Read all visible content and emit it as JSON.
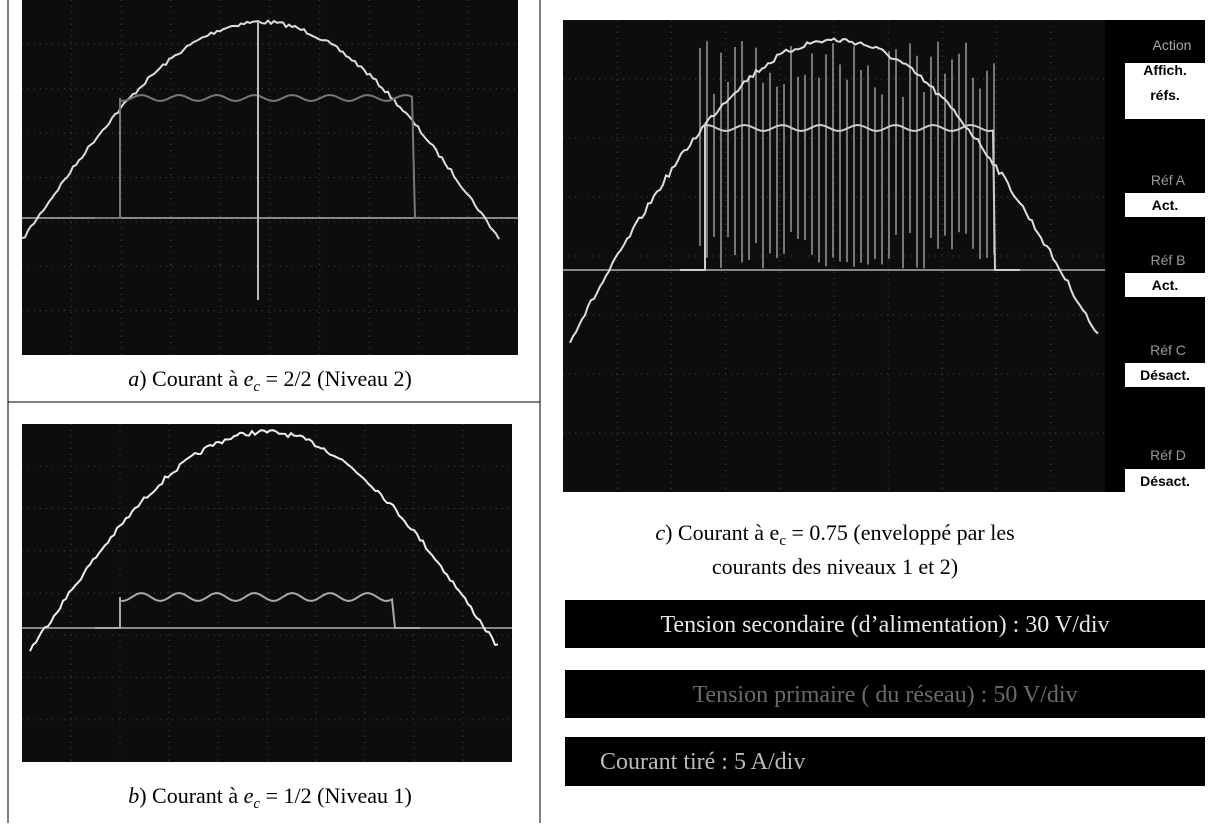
{
  "figure_a": {
    "caption": {
      "label": "a",
      "text1": ") Courant à ",
      "var": "e",
      "sub": "c",
      "text2": " = 2/2 (Niveau 2)"
    }
  },
  "figure_b": {
    "caption": {
      "label": "b",
      "text1": ") Courant à ",
      "var": "e",
      "sub": "c",
      "text2": " = 1/2 (Niveau 1)"
    }
  },
  "figure_c": {
    "caption": {
      "label": "c",
      "line1": ") Courant à e",
      "sub": "c",
      "line1b": " = 0.75 (enveloppé par les",
      "line2": "courants des niveaux 1 et 2)"
    },
    "menu": {
      "title": "Action",
      "items": [
        {
          "ref": "Affich.",
          "state": "réfs."
        },
        {
          "ref": "Réf A",
          "state": "Act."
        },
        {
          "ref": "Réf B",
          "state": "Act."
        },
        {
          "ref": "Réf C",
          "state": "Désact."
        },
        {
          "ref": "Réf D",
          "state": "Désact."
        }
      ]
    }
  },
  "scales": [
    "Tension secondaire (d’alimentation) :  30 V/div",
    "Tension primaire ( du réseau)  :  50 V/div",
    "Courant tiré : 5 A/div"
  ]
}
